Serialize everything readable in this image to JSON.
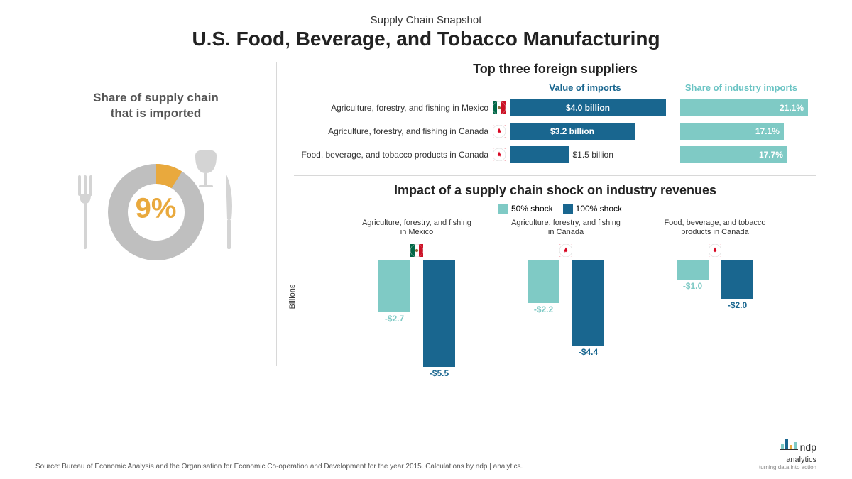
{
  "header": {
    "subtitle": "Supply Chain Snapshot",
    "title": "U.S. Food, Beverage, and Tobacco Manufacturing"
  },
  "left": {
    "title_line1": "Share of supply chain",
    "title_line2": "that is imported",
    "donut": {
      "value": 9,
      "display": "9%",
      "slice_color": "#e9a93d",
      "ring_color": "#bfbfbf",
      "center_text_color": "#e9a93d",
      "utensil_color": "#d4d4d4"
    }
  },
  "suppliers": {
    "section_title": "Top three foreign suppliers",
    "header_value": "Value of imports",
    "header_share": "Share of industry imports",
    "header_value_color": "#19668f",
    "header_share_color": "#6bc4c4",
    "value_bar_color": "#19668f",
    "share_bar_color": "#7fcac5",
    "value_max": 4.0,
    "share_max": 21.1,
    "rows": [
      {
        "label": "Agriculture, forestry, and fishing in Mexico",
        "flag": "mexico",
        "value": 4.0,
        "value_label": "$4.0 billion",
        "value_inside": true,
        "share": 21.1,
        "share_label": "21.1%"
      },
      {
        "label": "Agriculture, forestry, and fishing in Canada",
        "flag": "canada",
        "value": 3.2,
        "value_label": "$3.2 billion",
        "value_inside": true,
        "share": 17.1,
        "share_label": "17.1%"
      },
      {
        "label": "Food, beverage, and tobacco products in Canada",
        "flag": "canada",
        "value": 1.5,
        "value_label": "$1.5 billion",
        "value_inside": false,
        "share": 17.7,
        "share_label": "17.7%"
      }
    ]
  },
  "shock": {
    "section_title": "Impact of a supply chain shock on industry revenues",
    "legend": [
      {
        "label": "50% shock",
        "color": "#7fcac5"
      },
      {
        "label": "100% shock",
        "color": "#19668f"
      }
    ],
    "y_label": "Billions",
    "y_min": -5.5,
    "groups": [
      {
        "label": "Agriculture, forestry, and fishing in Mexico",
        "flag": "mexico",
        "v50": -2.7,
        "v100": -5.5
      },
      {
        "label": "Agriculture, forestry, and fishing in Canada",
        "flag": "canada",
        "v50": -2.2,
        "v100": -4.4
      },
      {
        "label": "Food, beverage, and tobacco products in Canada",
        "flag": "canada",
        "v50": -1.0,
        "v100": -2.0
      }
    ]
  },
  "footer": {
    "source": "Source: Bureau of Economic Analysis and the Organisation for Economic Co-operation and Development for the year 2015. Calculations by ndp | analytics.",
    "logo_main": "ndp",
    "logo_sub": "analytics",
    "logo_tag": "turning data into action"
  }
}
